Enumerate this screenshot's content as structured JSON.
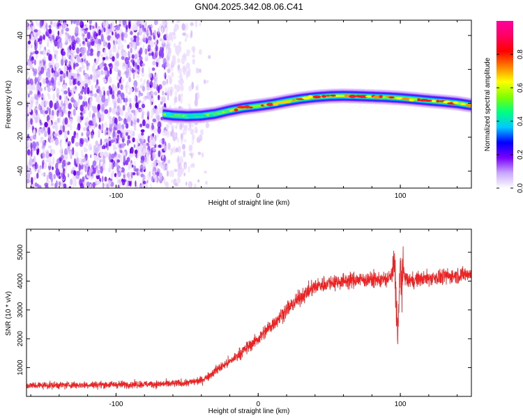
{
  "title": "GN04.2025.342.08.06.C41",
  "chart_data": [
    {
      "type": "heatmap",
      "name": "spectrogram",
      "xlabel": "Height of straight line (km)",
      "ylabel": "Frequency (Hz)",
      "xlim": [
        -163,
        150
      ],
      "ylim": [
        -50,
        49
      ],
      "xticks": [
        -100,
        0,
        100
      ],
      "xtick_labels": [
        "-100",
        "0",
        "100"
      ],
      "yticks": [
        -40,
        -20,
        0,
        20,
        40
      ],
      "ytick_labels": [
        "-40",
        "-20",
        "0",
        "20",
        "40"
      ],
      "noise_region_km": [
        -163,
        -40
      ],
      "trace": {
        "x": [
          -67,
          -60,
          -50,
          -40,
          -30,
          -20,
          -10,
          0,
          10,
          20,
          30,
          40,
          50,
          60,
          70,
          80,
          90,
          100,
          110,
          120,
          130,
          140,
          150
        ],
        "y": [
          -6.5,
          -7.2,
          -7.6,
          -7.3,
          -6.2,
          -4.2,
          -2.6,
          -1.6,
          -0.4,
          1.2,
          2.6,
          3.6,
          4.2,
          4.4,
          4.2,
          3.9,
          3.6,
          3.1,
          2.4,
          1.6,
          0.9,
          0.1,
          -1.2
        ]
      },
      "colorbar": {
        "label": "Normalized spectral amplitude",
        "range": [
          0.0,
          1.0
        ],
        "ticks": [
          0.0,
          0.2,
          0.4,
          0.6,
          0.8
        ],
        "tick_labels": [
          "0.0",
          "0.2",
          "0.4",
          "0.6",
          "0.8"
        ],
        "colors": [
          "#ffffff",
          "#c9a6ff",
          "#7a00ff",
          "#0000ff",
          "#00c8ff",
          "#00ff80",
          "#7fff00",
          "#ffff00",
          "#ff8000",
          "#ff0000",
          "#ff0060",
          "#ff00a0"
        ]
      }
    },
    {
      "type": "line",
      "name": "snr",
      "xlabel": "Height of straight line (km)",
      "ylabel": "SNR (10 * v/v)",
      "xlim": [
        -163,
        150
      ],
      "ylim": [
        0,
        5800
      ],
      "xticks": [
        -100,
        0,
        100
      ],
      "xtick_labels": [
        "-100",
        "0",
        "100"
      ],
      "yticks": [
        1000,
        2000,
        3000,
        4000,
        5000
      ],
      "ytick_labels": [
        "1000",
        "2000",
        "3000",
        "4000",
        "5000"
      ],
      "color": "#ee2222",
      "x": [
        -163,
        -140,
        -120,
        -100,
        -80,
        -60,
        -50,
        -40,
        -35,
        -30,
        -20,
        -10,
        0,
        10,
        20,
        30,
        40,
        50,
        60,
        70,
        80,
        90,
        94,
        96,
        97,
        98,
        99,
        100,
        101,
        102,
        105,
        110,
        120,
        130,
        140,
        150
      ],
      "y": [
        380,
        390,
        400,
        410,
        420,
        440,
        470,
        560,
        700,
        900,
        1200,
        1600,
        2000,
        2500,
        3000,
        3450,
        3800,
        3950,
        4000,
        4050,
        4050,
        4050,
        4200,
        4600,
        3400,
        2200,
        3000,
        4600,
        3800,
        4300,
        4000,
        4050,
        4100,
        4150,
        4200,
        4250
      ],
      "noise_amplitude": 260
    }
  ]
}
